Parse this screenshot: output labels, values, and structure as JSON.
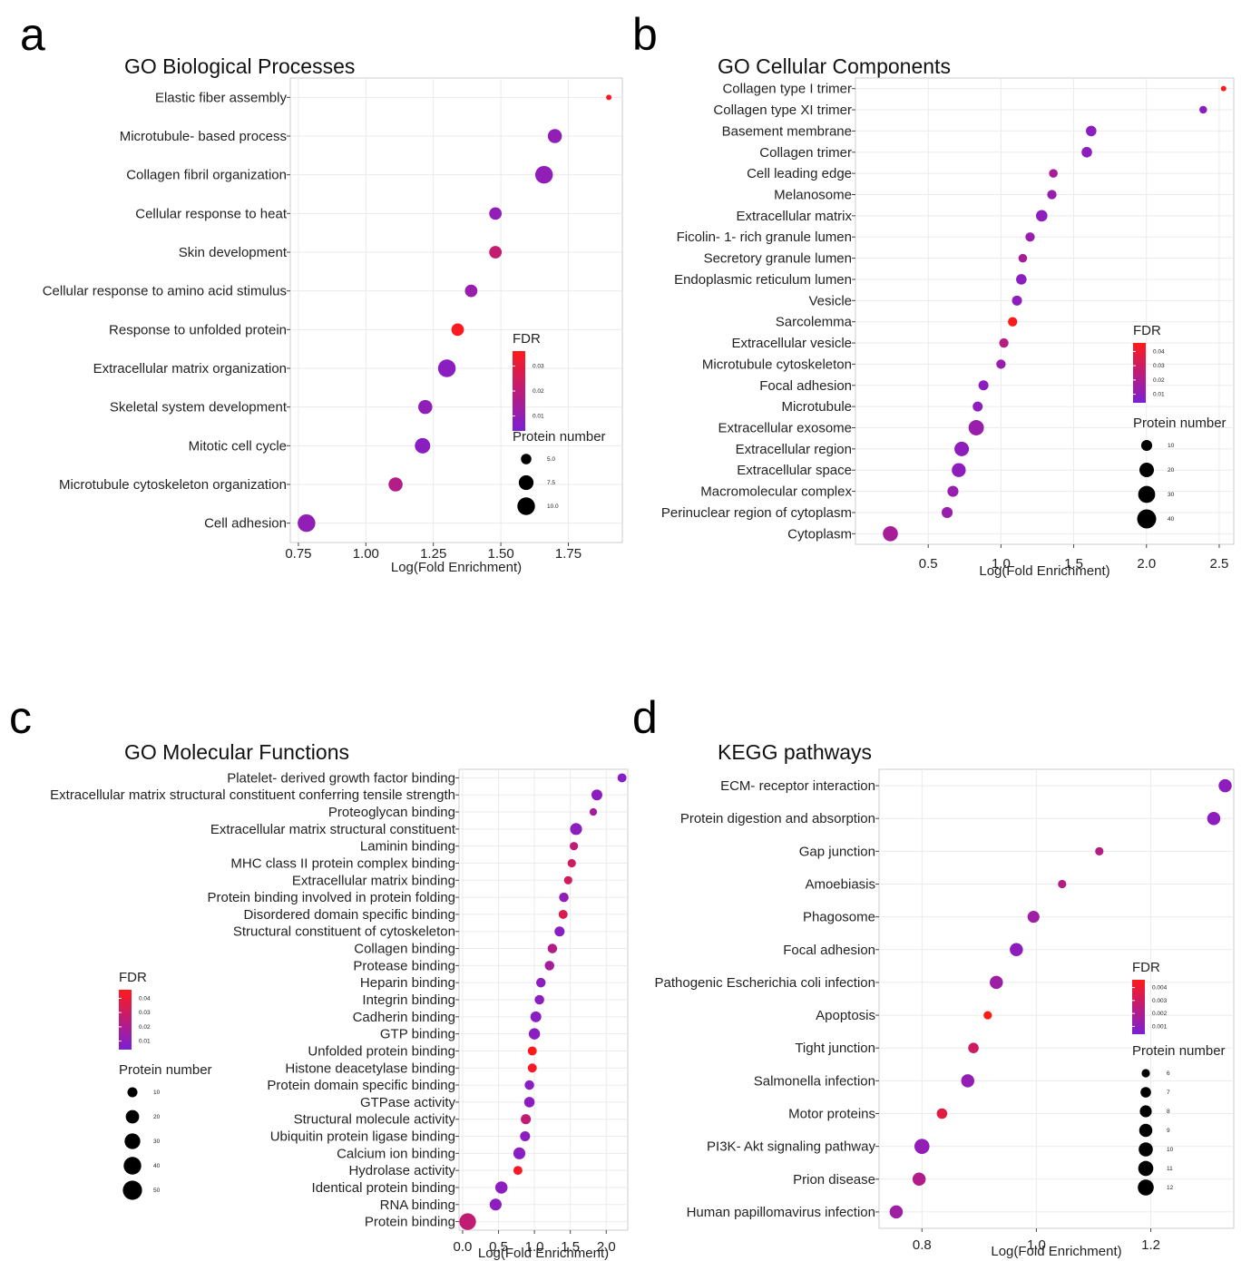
{
  "panels": [
    {
      "letter": "a",
      "title": "GO Biological Processes",
      "legend": {
        "fdr_title": "FDR",
        "fdr_ticks": [
          "0.03",
          "0.02",
          "0.01"
        ],
        "size_title": "Protein number",
        "size_ticks": [
          "5.0",
          "7.5",
          "10.0"
        ]
      }
    },
    {
      "letter": "b",
      "title": "GO Cellular Components",
      "legend": {
        "fdr_title": "FDR",
        "fdr_ticks": [
          "0.04",
          "0.03",
          "0.02",
          "0.01"
        ],
        "size_title": "Protein number",
        "size_ticks": [
          "10",
          "20",
          "30",
          "40"
        ]
      }
    },
    {
      "letter": "c",
      "title": "GO Molecular Functions",
      "legend": {
        "fdr_title": "FDR",
        "fdr_ticks": [
          "0.04",
          "0.03",
          "0.02",
          "0.01"
        ],
        "size_title": "Protein number",
        "size_ticks": [
          "10",
          "20",
          "30",
          "40",
          "50"
        ]
      }
    },
    {
      "letter": "d",
      "title": "KEGG pathways",
      "legend": {
        "fdr_title": "FDR",
        "fdr_ticks": [
          "0.004",
          "0.003",
          "0.002",
          "0.001"
        ],
        "size_title": "Protein number",
        "size_ticks": [
          "6",
          "7",
          "8",
          "9",
          "10",
          "11",
          "12"
        ]
      }
    }
  ],
  "colors": {
    "fdr_low": "#7b1fd6",
    "fdr_high": "#ff1a1a",
    "grid": "#ebebeb",
    "panel_border": "#cccccc",
    "size_key": "#000000"
  },
  "chart_data": [
    {
      "type": "scatter",
      "title": "GO Biological Processes",
      "xlabel": "Log(Fold Enrichment)",
      "x_ticks": [
        "0.75",
        "1.00",
        "1.25",
        "1.50",
        "1.75"
      ],
      "xlim": [
        0.72,
        1.95
      ],
      "grid": true,
      "legend_position": "right",
      "categories": [
        "Elastic fiber assembly",
        "Microtubule- based process",
        "Collagen fibril organization",
        "Cellular response to heat",
        "Skin development",
        "Cellular response to amino acid stimulus",
        "Response to unfolded protein",
        "Extracellular matrix organization",
        "Skeletal system development",
        "Mitotic cell cycle",
        "Microtubule cytoskeleton organization",
        "Cell adhesion"
      ],
      "x": [
        1.9,
        1.7,
        1.66,
        1.48,
        1.48,
        1.39,
        1.34,
        1.3,
        1.22,
        1.21,
        1.11,
        0.78
      ],
      "size": [
        4,
        7,
        10,
        6,
        6,
        6,
        6,
        10,
        7,
        8,
        7,
        10
      ],
      "fdr": [
        0.035,
        0.006,
        0.006,
        0.006,
        0.02,
        0.008,
        0.035,
        0.004,
        0.006,
        0.004,
        0.015,
        0.006
      ],
      "size_range": [
        4,
        10.5
      ],
      "fdr_range": [
        0.0,
        0.036
      ]
    },
    {
      "type": "scatter",
      "title": "GO Cellular Components",
      "xlabel": "Log(Fold Enrichment)",
      "x_ticks": [
        "0.5",
        "1.0",
        "1.5",
        "2.0",
        "2.5"
      ],
      "xlim": [
        0.0,
        2.6
      ],
      "grid": true,
      "legend_position": "right",
      "categories": [
        "Collagen type I trimer",
        "Collagen type XI trimer",
        "Basement membrane",
        "Collagen trimer",
        "Cell leading edge",
        "Melanosome",
        "Extracellular matrix",
        "Ficolin- 1- rich granule lumen",
        "Secretory granule lumen",
        "Endoplasmic reticulum lumen",
        "Vesicle",
        "Sarcolemma",
        "Extracellular vesicle",
        "Microtubule cytoskeleton",
        "Focal adhesion",
        "Microtubule",
        "Extracellular exosome",
        "Extracellular region",
        "Extracellular space",
        "Macromolecular complex",
        "Perinuclear region of cytoplasm",
        "Cytoplasm"
      ],
      "x": [
        2.53,
        2.39,
        1.62,
        1.59,
        1.36,
        1.35,
        1.28,
        1.2,
        1.15,
        1.14,
        1.11,
        1.08,
        1.02,
        1.0,
        0.88,
        0.84,
        0.83,
        0.73,
        0.71,
        0.67,
        0.63,
        0.24
      ],
      "size": [
        4,
        5,
        9,
        9,
        6,
        7,
        11,
        7,
        6,
        9,
        8,
        7,
        7,
        7,
        8,
        8,
        23,
        20,
        18,
        10,
        10,
        22
      ],
      "fdr": [
        0.045,
        0.005,
        0.005,
        0.006,
        0.015,
        0.01,
        0.006,
        0.01,
        0.015,
        0.005,
        0.006,
        0.045,
        0.02,
        0.01,
        0.005,
        0.006,
        0.01,
        0.006,
        0.006,
        0.01,
        0.01,
        0.015
      ],
      "size_range": [
        4,
        45
      ],
      "fdr_range": [
        0.0,
        0.045
      ]
    },
    {
      "type": "scatter",
      "title": "GO Molecular Functions",
      "xlabel": "Log(Fold Enrichment)",
      "x_ticks": [
        "0.0",
        "0.5",
        "1.0",
        "1.5",
        "2.0"
      ],
      "xlim": [
        -0.05,
        2.3
      ],
      "grid": true,
      "legend_position": "left",
      "categories": [
        "Platelet- derived growth factor binding",
        "Extracellular matrix structural constituent conferring tensile strength",
        "Proteoglycan binding",
        "Extracellular matrix structural constituent",
        "Laminin binding",
        "MHC class II protein complex binding",
        "Extracellular matrix binding",
        "Protein binding involved in protein folding",
        "Disordered domain specific binding",
        "Structural constituent of cytoskeleton",
        "Collagen binding",
        "Protease binding",
        "Heparin binding",
        "Integrin binding",
        "Cadherin binding",
        "GTP binding",
        "Unfolded protein binding",
        "Histone deacetylase binding",
        "Protein domain specific binding",
        "GTPase activity",
        "Structural molecule activity",
        "Ubiquitin protein ligase binding",
        "Calcium ion binding",
        "Hydrolase activity",
        "Identical protein binding",
        "RNA binding",
        "Protein binding"
      ],
      "x": [
        2.22,
        1.87,
        1.82,
        1.58,
        1.55,
        1.52,
        1.47,
        1.41,
        1.4,
        1.35,
        1.25,
        1.21,
        1.09,
        1.07,
        1.02,
        1.0,
        0.97,
        0.97,
        0.93,
        0.93,
        0.88,
        0.87,
        0.79,
        0.77,
        0.54,
        0.46,
        0.07
      ],
      "size": [
        8,
        12,
        6,
        15,
        7,
        7,
        7,
        9,
        8,
        10,
        9,
        9,
        9,
        9,
        12,
        13,
        8,
        8,
        9,
        11,
        10,
        10,
        15,
        8,
        16,
        15,
        35
      ],
      "fdr": [
        0.004,
        0.006,
        0.015,
        0.006,
        0.025,
        0.03,
        0.03,
        0.008,
        0.035,
        0.005,
        0.02,
        0.015,
        0.006,
        0.006,
        0.005,
        0.005,
        0.048,
        0.045,
        0.006,
        0.006,
        0.025,
        0.006,
        0.005,
        0.045,
        0.006,
        0.006,
        0.025
      ],
      "size_range": [
        5,
        55
      ],
      "fdr_range": [
        0.0,
        0.048
      ]
    },
    {
      "type": "scatter",
      "title": "KEGG pathways",
      "xlabel": "Log(Fold Enrichment)",
      "x_ticks": [
        "0.8",
        "1.0",
        "1.2"
      ],
      "xlim": [
        0.725,
        1.345
      ],
      "grid": true,
      "legend_position": "right",
      "categories": [
        "ECM- receptor interaction",
        "Protein digestion and absorption",
        "Gap junction",
        "Amoebiasis",
        "Phagosome",
        "Focal adhesion",
        "Pathogenic Escherichia coli infection",
        "Apoptosis",
        "Tight junction",
        "Salmonella infection",
        "Motor proteins",
        "PI3K- Akt signaling pathway",
        "Prion disease",
        "Human papillomavirus infection"
      ],
      "x": [
        1.33,
        1.31,
        1.11,
        1.045,
        0.995,
        0.965,
        0.93,
        0.915,
        0.89,
        0.88,
        0.835,
        0.8,
        0.795,
        0.755
      ],
      "size": [
        9,
        9,
        6,
        6,
        8,
        9,
        9,
        6,
        7,
        9,
        7,
        11,
        9,
        9
      ],
      "fdr": [
        0.0006,
        0.0006,
        0.002,
        0.002,
        0.0012,
        0.0006,
        0.0012,
        0.0045,
        0.0028,
        0.0008,
        0.0035,
        0.0008,
        0.0018,
        0.0012
      ],
      "size_range": [
        5.5,
        12.5
      ],
      "fdr_range": [
        0.0,
        0.0045
      ]
    }
  ],
  "axis_title": "Log(Fold Enrichment)"
}
